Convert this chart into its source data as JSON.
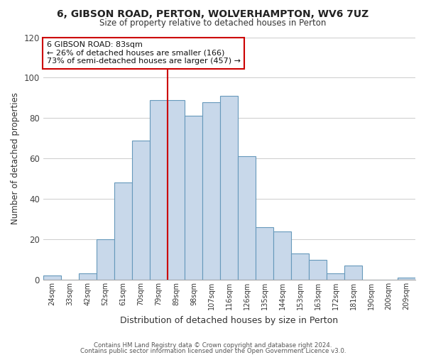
{
  "title": "6, GIBSON ROAD, PERTON, WOLVERHAMPTON, WV6 7UZ",
  "subtitle": "Size of property relative to detached houses in Perton",
  "xlabel": "Distribution of detached houses by size in Perton",
  "ylabel": "Number of detached properties",
  "bar_labels": [
    "24sqm",
    "33sqm",
    "42sqm",
    "52sqm",
    "61sqm",
    "70sqm",
    "79sqm",
    "89sqm",
    "98sqm",
    "107sqm",
    "116sqm",
    "126sqm",
    "135sqm",
    "144sqm",
    "153sqm",
    "163sqm",
    "172sqm",
    "181sqm",
    "190sqm",
    "200sqm",
    "209sqm"
  ],
  "bar_values": [
    2,
    0,
    3,
    20,
    48,
    69,
    89,
    89,
    81,
    88,
    91,
    61,
    26,
    24,
    13,
    10,
    3,
    7,
    0,
    0,
    1
  ],
  "bar_color": "#c8d8ea",
  "bar_edge_color": "#6699bb",
  "ylim": [
    0,
    120
  ],
  "yticks": [
    0,
    20,
    40,
    60,
    80,
    100,
    120
  ],
  "vline_x": 6.5,
  "vline_color": "#cc0000",
  "annotation_title": "6 GIBSON ROAD: 83sqm",
  "annotation_line1": "← 26% of detached houses are smaller (166)",
  "annotation_line2": "73% of semi-detached houses are larger (457) →",
  "annotation_box_color": "#ffffff",
  "annotation_border_color": "#cc0000",
  "footer1": "Contains HM Land Registry data © Crown copyright and database right 2024.",
  "footer2": "Contains public sector information licensed under the Open Government Licence v3.0.",
  "background_color": "#ffffff",
  "grid_color": "#cccccc"
}
